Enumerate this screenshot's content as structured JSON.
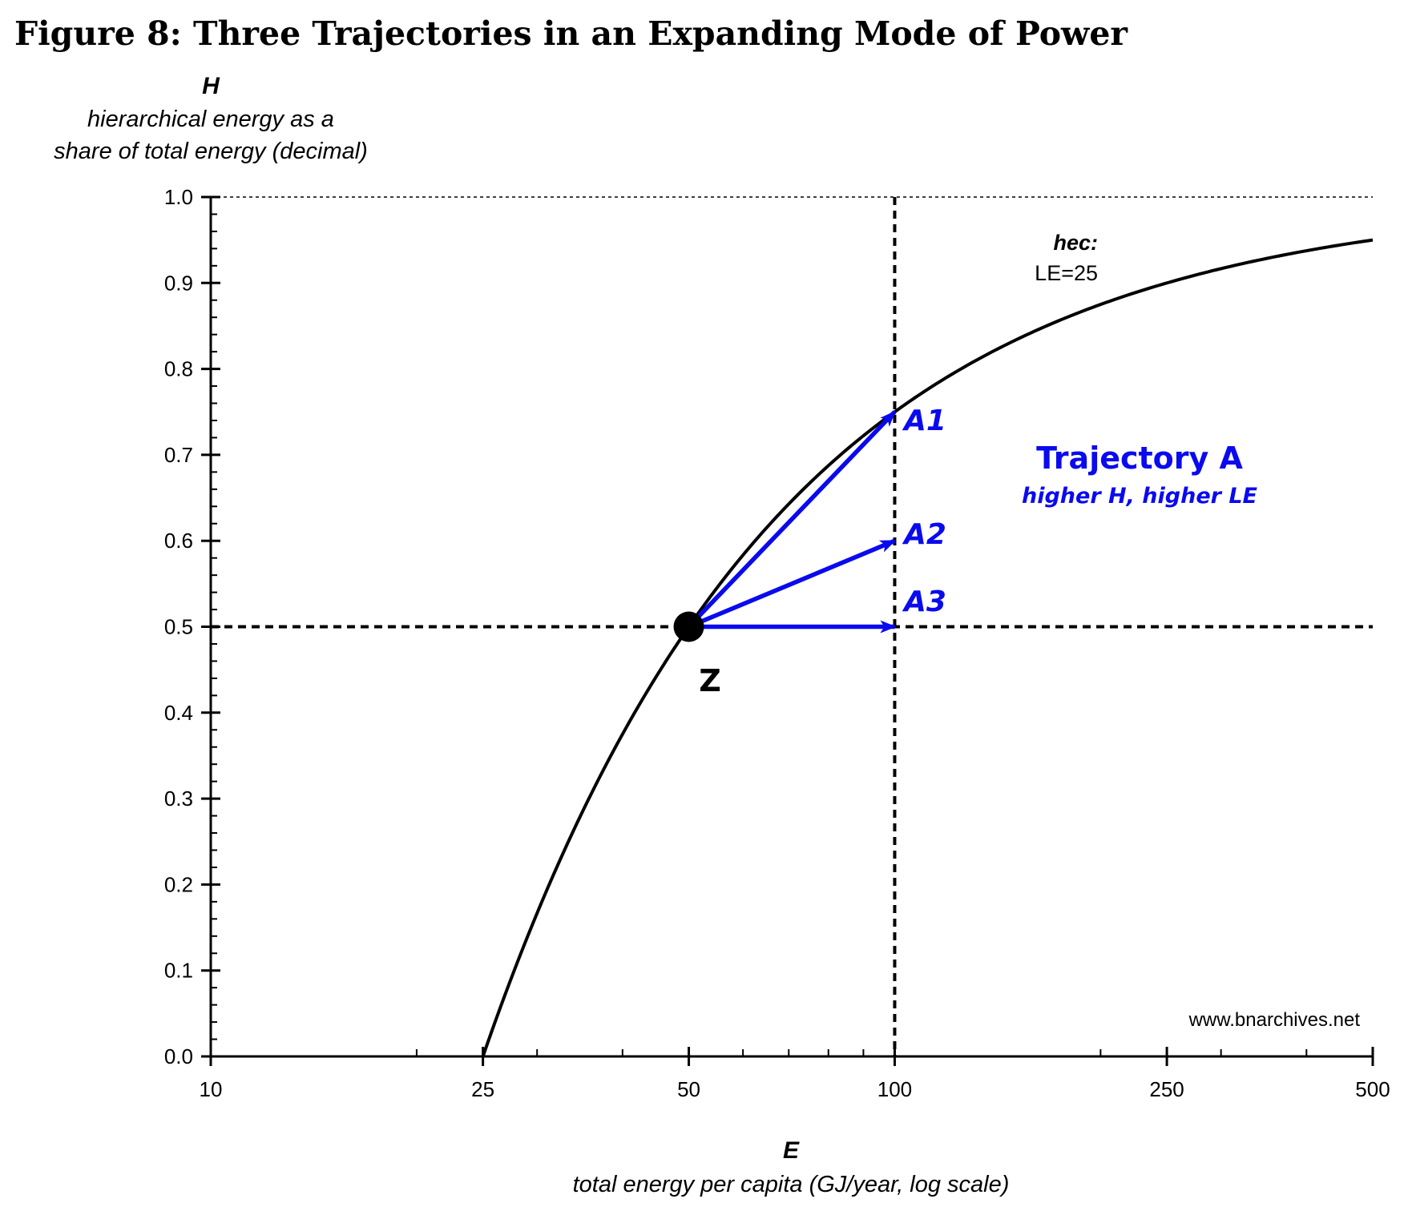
{
  "chart_data": {
    "type": "line",
    "title": "Figure 8: Three Trajectories in an Expanding Mode of Power",
    "ylabel_var": "H",
    "ylabel_line1": "hierarchical energy as a",
    "ylabel_line2": "share of total energy (decimal)",
    "xlabel_var": "E",
    "xlabel": "total energy per capita (GJ/year, log scale)",
    "xscale": "log",
    "xlim": [
      10,
      500
    ],
    "ylim": [
      0,
      1
    ],
    "xticks": [
      10,
      25,
      50,
      100,
      250,
      500
    ],
    "xtick_labels": [
      "10",
      "25",
      "50",
      "100",
      "250",
      "500"
    ],
    "yticks": [
      0,
      0.1,
      0.2,
      0.3,
      0.4,
      0.5,
      0.6,
      0.7,
      0.8,
      0.9,
      1.0
    ],
    "ytick_labels": [
      "0.0",
      "0.1",
      "0.2",
      "0.3",
      "0.4",
      "0.5",
      "0.6",
      "0.7",
      "0.8",
      "0.9",
      "1.0"
    ],
    "curve": {
      "label_line1": "hec:",
      "label_line2": "LE=25",
      "LE": 25,
      "formula": "H = 1 - LE / E",
      "x_start": 25,
      "x_end": 500,
      "color": "#000000"
    },
    "reference_lines": {
      "horizontal_y": 0.5,
      "vertical_x": 100,
      "top_y": 1.0
    },
    "point_z": {
      "label": "Z",
      "x": 50,
      "y": 0.5
    },
    "arrows": [
      {
        "label": "A1",
        "from": [
          50,
          0.5
        ],
        "to": [
          100,
          0.75
        ]
      },
      {
        "label": "A2",
        "from": [
          50,
          0.5
        ],
        "to": [
          100,
          0.6
        ]
      },
      {
        "label": "A3",
        "from": [
          50,
          0.5
        ],
        "to": [
          100,
          0.5
        ]
      }
    ],
    "annotation": {
      "title": "Trajectory A",
      "subtitle": "higher H, higher LE"
    },
    "colors": {
      "blue": "#0a0aef",
      "black": "#000000"
    },
    "grid": false,
    "legend": "none"
  },
  "watermark": "www.bnarchives.net"
}
